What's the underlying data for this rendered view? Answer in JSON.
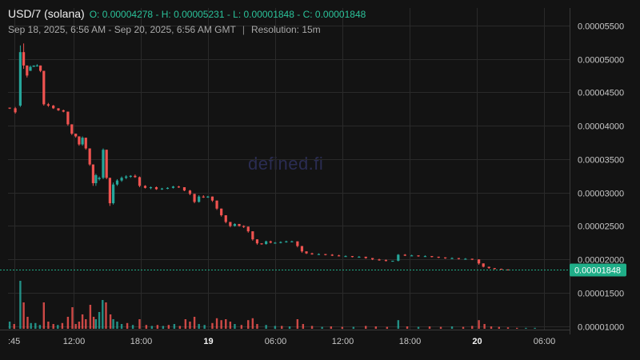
{
  "header": {
    "symbol": "USD/7 (solana)",
    "ohlc": "O: 0.00004278 - H: 0.00005231 - L: 0.00001848 - C: 0.00001848",
    "range": "Sep 18, 2025, 6:56 AM - Sep 20, 2025, 6:56 AM GMT",
    "separator": "|",
    "resolution": "Resolution: 15m"
  },
  "watermark": "defined.fi",
  "colors": {
    "up": "#26a69a",
    "down": "#ef5350",
    "last_price_badge": "#1fae88",
    "background": "#131313"
  },
  "chart_data": {
    "type": "candlestick",
    "y_tick_labels": [
      "0.00005500",
      "0.00005000",
      "0.00004500",
      "0.00004000",
      "0.00003500",
      "0.00003000",
      "0.00002500",
      "0.00002000",
      "0.00001500",
      "0.00001000"
    ],
    "y_ticks": [
      5.5e-05,
      5e-05,
      4.5e-05,
      4e-05,
      3.5e-05,
      3e-05,
      2.5e-05,
      2e-05,
      1.5e-05,
      1e-05
    ],
    "ylim": [
      9.5e-06,
      5.76e-05
    ],
    "x_tick_labels": [
      ":45",
      "12:00",
      "18:00",
      "19",
      "06:00",
      "12:00",
      "18:00",
      "20",
      "06:00"
    ],
    "x_ticks_hours": [
      -0.25,
      5,
      11,
      17,
      23,
      29,
      35,
      41,
      47
    ],
    "x_tick_bold": [
      false,
      false,
      false,
      true,
      false,
      false,
      false,
      true,
      false
    ],
    "xlim_hours": [
      -0.85,
      49.3
    ],
    "time_unit": "hours after 2025-09-18 06:56",
    "last_price": "0.00001848",
    "grid": true,
    "candles": [
      [
        -0.7,
        4.27,
        4.27,
        4.25,
        4.26
      ],
      [
        -0.2,
        4.26,
        4.28,
        4.18,
        4.2
      ],
      [
        0.25,
        4.3,
        5.2,
        4.28,
        5.1
      ],
      [
        0.55,
        5.1,
        5.23,
        4.85,
        4.9
      ],
      [
        0.85,
        4.9,
        4.9,
        4.72,
        4.75
      ],
      [
        1.15,
        4.82,
        4.9,
        4.82,
        4.88
      ],
      [
        1.45,
        4.88,
        4.9,
        4.88,
        4.9
      ],
      [
        1.75,
        4.9,
        4.92,
        4.89,
        4.9
      ],
      [
        2.05,
        4.9,
        4.9,
        4.8,
        4.82
      ],
      [
        2.35,
        4.82,
        4.82,
        4.3,
        4.32
      ],
      [
        2.75,
        4.32,
        4.34,
        4.28,
        4.3
      ],
      [
        3.2,
        4.3,
        4.31,
        4.25,
        4.26
      ],
      [
        3.65,
        4.26,
        4.26,
        4.22,
        4.23
      ],
      [
        4.1,
        4.23,
        4.24,
        4.2,
        4.21
      ],
      [
        4.5,
        4.21,
        4.21,
        4.0,
        4.02
      ],
      [
        4.85,
        4.02,
        4.02,
        3.86,
        3.88
      ],
      [
        5.2,
        3.88,
        3.88,
        3.82,
        3.84
      ],
      [
        5.5,
        3.84,
        3.84,
        3.7,
        3.72
      ],
      [
        5.8,
        3.72,
        3.84,
        3.7,
        3.82
      ],
      [
        6.1,
        3.82,
        3.82,
        3.64,
        3.66
      ],
      [
        6.45,
        3.66,
        3.66,
        3.4,
        3.42
      ],
      [
        6.75,
        3.42,
        3.42,
        3.1,
        3.14
      ],
      [
        7.0,
        3.14,
        3.28,
        3.1,
        3.26
      ],
      [
        7.3,
        3.2,
        3.24,
        3.18,
        3.22
      ],
      [
        7.65,
        3.22,
        3.66,
        3.2,
        3.64
      ],
      [
        7.95,
        3.64,
        3.64,
        3.2,
        3.22
      ],
      [
        8.25,
        3.22,
        3.22,
        2.8,
        2.84
      ],
      [
        8.55,
        2.84,
        3.15,
        2.82,
        3.12
      ],
      [
        8.9,
        3.12,
        3.2,
        3.1,
        3.18
      ],
      [
        9.3,
        3.18,
        3.24,
        3.16,
        3.22
      ],
      [
        9.7,
        3.22,
        3.26,
        3.2,
        3.24
      ],
      [
        10.1,
        3.24,
        3.26,
        3.22,
        3.25
      ],
      [
        10.5,
        3.25,
        3.27,
        3.22,
        3.23
      ],
      [
        10.9,
        3.23,
        3.24,
        3.08,
        3.1
      ],
      [
        11.4,
        3.1,
        3.11,
        3.06,
        3.07
      ],
      [
        11.9,
        3.07,
        3.09,
        3.05,
        3.08
      ],
      [
        12.4,
        3.08,
        3.09,
        3.04,
        3.05
      ],
      [
        12.9,
        3.05,
        3.07,
        3.04,
        3.06
      ],
      [
        13.4,
        3.06,
        3.08,
        3.05,
        3.07
      ],
      [
        13.9,
        3.07,
        3.1,
        3.06,
        3.09
      ],
      [
        14.4,
        3.09,
        3.1,
        3.07,
        3.08
      ],
      [
        14.9,
        3.08,
        3.08,
        3.02,
        3.03
      ],
      [
        15.4,
        3.03,
        3.04,
        2.96,
        2.98
      ],
      [
        15.8,
        2.98,
        2.98,
        2.84,
        2.86
      ],
      [
        16.2,
        2.86,
        2.96,
        2.85,
        2.94
      ],
      [
        16.6,
        2.94,
        2.96,
        2.92,
        2.93
      ],
      [
        17.0,
        2.93,
        2.95,
        2.92,
        2.94
      ],
      [
        17.4,
        2.94,
        2.94,
        2.86,
        2.88
      ],
      [
        17.8,
        2.88,
        2.88,
        2.74,
        2.76
      ],
      [
        18.2,
        2.76,
        2.76,
        2.64,
        2.66
      ],
      [
        18.6,
        2.66,
        2.66,
        2.54,
        2.56
      ],
      [
        19.0,
        2.56,
        2.56,
        2.48,
        2.5
      ],
      [
        19.4,
        2.5,
        2.54,
        2.49,
        2.53
      ],
      [
        19.8,
        2.53,
        2.53,
        2.49,
        2.5
      ],
      [
        20.2,
        2.5,
        2.51,
        2.47,
        2.49
      ],
      [
        20.6,
        2.49,
        2.49,
        2.4,
        2.42
      ],
      [
        21.0,
        2.42,
        2.42,
        2.28,
        2.3
      ],
      [
        21.4,
        2.3,
        2.3,
        2.22,
        2.24
      ],
      [
        21.8,
        2.24,
        2.24,
        2.22,
        2.23
      ],
      [
        22.2,
        2.23,
        2.28,
        2.22,
        2.27
      ],
      [
        22.6,
        2.27,
        2.28,
        2.24,
        2.25
      ],
      [
        23.0,
        2.25,
        2.26,
        2.24,
        2.25
      ],
      [
        23.5,
        2.25,
        2.27,
        2.24,
        2.26
      ],
      [
        24.0,
        2.26,
        2.28,
        2.25,
        2.27
      ],
      [
        24.5,
        2.27,
        2.28,
        2.26,
        2.27
      ],
      [
        25.0,
        2.27,
        2.27,
        2.18,
        2.2
      ],
      [
        25.4,
        2.2,
        2.2,
        2.1,
        2.12
      ],
      [
        25.8,
        2.12,
        2.12,
        2.08,
        2.09
      ],
      [
        26.3,
        2.09,
        2.1,
        2.07,
        2.08
      ],
      [
        26.9,
        2.08,
        2.09,
        2.07,
        2.08
      ],
      [
        27.5,
        2.08,
        2.08,
        2.06,
        2.07
      ],
      [
        28.1,
        2.07,
        2.08,
        2.05,
        2.06
      ],
      [
        28.7,
        2.06,
        2.07,
        2.05,
        2.05
      ],
      [
        29.3,
        2.05,
        2.06,
        2.04,
        2.05
      ],
      [
        29.9,
        2.05,
        2.05,
        2.03,
        2.04
      ],
      [
        30.5,
        2.04,
        2.05,
        2.03,
        2.04
      ],
      [
        31.1,
        2.04,
        2.04,
        2.01,
        2.02
      ],
      [
        31.7,
        2.02,
        2.02,
        1.99,
        2.0
      ],
      [
        32.3,
        2.0,
        2.01,
        1.98,
        1.99
      ],
      [
        32.9,
        1.99,
        2.0,
        1.97,
        1.98
      ],
      [
        33.5,
        1.98,
        1.98,
        1.97,
        1.98
      ],
      [
        34.0,
        1.98,
        2.08,
        1.97,
        2.07
      ],
      [
        34.6,
        2.07,
        2.08,
        2.05,
        2.06
      ],
      [
        35.2,
        2.06,
        2.07,
        2.05,
        2.06
      ],
      [
        35.8,
        2.06,
        2.06,
        2.04,
        2.05
      ],
      [
        36.4,
        2.05,
        2.06,
        2.04,
        2.05
      ],
      [
        37.0,
        2.05,
        2.05,
        2.03,
        2.04
      ],
      [
        37.6,
        2.04,
        2.04,
        2.02,
        2.03
      ],
      [
        38.2,
        2.03,
        2.03,
        2.01,
        2.02
      ],
      [
        38.8,
        2.02,
        2.03,
        2.01,
        2.02
      ],
      [
        39.4,
        2.02,
        2.02,
        2.0,
        2.01
      ],
      [
        40.0,
        2.01,
        2.02,
        2.0,
        2.01
      ],
      [
        40.6,
        2.01,
        2.01,
        1.99,
        2.0
      ],
      [
        41.2,
        2.0,
        2.0,
        1.92,
        1.94
      ],
      [
        41.6,
        1.94,
        1.94,
        1.88,
        1.89
      ],
      [
        42.1,
        1.89,
        1.89,
        1.86,
        1.87
      ],
      [
        42.6,
        1.87,
        1.87,
        1.85,
        1.86
      ],
      [
        43.2,
        1.86,
        1.86,
        1.85,
        1.85
      ],
      [
        43.8,
        1.85,
        1.85,
        1.848,
        1.848
      ]
    ],
    "volume": [
      [
        -0.7,
        0.15,
        "up"
      ],
      [
        -0.3,
        0.1,
        "down"
      ],
      [
        0.25,
        1.0,
        "up"
      ],
      [
        0.55,
        0.55,
        "down"
      ],
      [
        0.9,
        0.25,
        "down"
      ],
      [
        1.2,
        0.12,
        "up"
      ],
      [
        1.6,
        0.12,
        "up"
      ],
      [
        2.0,
        0.08,
        "up"
      ],
      [
        2.35,
        0.55,
        "down"
      ],
      [
        2.75,
        0.15,
        "down"
      ],
      [
        3.2,
        0.1,
        "down"
      ],
      [
        3.6,
        0.08,
        "up"
      ],
      [
        4.0,
        0.12,
        "down"
      ],
      [
        4.5,
        0.25,
        "down"
      ],
      [
        4.9,
        0.45,
        "down"
      ],
      [
        5.2,
        0.1,
        "down"
      ],
      [
        5.5,
        0.15,
        "down"
      ],
      [
        5.8,
        0.3,
        "down"
      ],
      [
        6.1,
        0.2,
        "down"
      ],
      [
        6.5,
        0.5,
        "down"
      ],
      [
        6.8,
        0.25,
        "down"
      ],
      [
        7.0,
        0.2,
        "up"
      ],
      [
        7.3,
        0.35,
        "up"
      ],
      [
        7.6,
        0.6,
        "up"
      ],
      [
        7.9,
        0.55,
        "down"
      ],
      [
        8.3,
        0.3,
        "down"
      ],
      [
        8.55,
        0.2,
        "up"
      ],
      [
        8.9,
        0.15,
        "up"
      ],
      [
        9.3,
        0.1,
        "up"
      ],
      [
        9.8,
        0.12,
        "down"
      ],
      [
        10.3,
        0.08,
        "up"
      ],
      [
        10.9,
        0.2,
        "down"
      ],
      [
        11.5,
        0.08,
        "down"
      ],
      [
        12.0,
        0.06,
        "up"
      ],
      [
        12.5,
        0.08,
        "down"
      ],
      [
        13.0,
        0.06,
        "up"
      ],
      [
        13.5,
        0.08,
        "down"
      ],
      [
        14.0,
        0.1,
        "up"
      ],
      [
        14.5,
        0.06,
        "down"
      ],
      [
        15.0,
        0.2,
        "down"
      ],
      [
        15.4,
        0.15,
        "down"
      ],
      [
        15.8,
        0.25,
        "down"
      ],
      [
        16.2,
        0.1,
        "up"
      ],
      [
        16.7,
        0.08,
        "up"
      ],
      [
        17.4,
        0.12,
        "down"
      ],
      [
        17.8,
        0.22,
        "down"
      ],
      [
        18.2,
        0.18,
        "down"
      ],
      [
        18.6,
        0.2,
        "down"
      ],
      [
        19.0,
        0.15,
        "down"
      ],
      [
        19.4,
        0.1,
        "up"
      ],
      [
        20.0,
        0.08,
        "down"
      ],
      [
        20.6,
        0.18,
        "down"
      ],
      [
        21.0,
        0.22,
        "down"
      ],
      [
        21.4,
        0.1,
        "down"
      ],
      [
        22.2,
        0.08,
        "up"
      ],
      [
        23.0,
        0.06,
        "up"
      ],
      [
        23.6,
        0.06,
        "down"
      ],
      [
        24.3,
        0.05,
        "up"
      ],
      [
        25.0,
        0.2,
        "down"
      ],
      [
        25.5,
        0.1,
        "down"
      ],
      [
        26.3,
        0.06,
        "down"
      ],
      [
        27.2,
        0.04,
        "up"
      ],
      [
        28.0,
        0.05,
        "down"
      ],
      [
        29.0,
        0.04,
        "down"
      ],
      [
        30.0,
        0.04,
        "up"
      ],
      [
        31.1,
        0.06,
        "down"
      ],
      [
        32.0,
        0.05,
        "down"
      ],
      [
        33.0,
        0.04,
        "down"
      ],
      [
        34.0,
        0.18,
        "up"
      ],
      [
        34.8,
        0.05,
        "down"
      ],
      [
        35.8,
        0.04,
        "up"
      ],
      [
        36.8,
        0.05,
        "down"
      ],
      [
        37.8,
        0.04,
        "down"
      ],
      [
        38.8,
        0.05,
        "up"
      ],
      [
        39.8,
        0.04,
        "down"
      ],
      [
        40.6,
        0.06,
        "down"
      ],
      [
        41.2,
        0.18,
        "down"
      ],
      [
        41.7,
        0.1,
        "down"
      ],
      [
        42.3,
        0.05,
        "down"
      ],
      [
        43.0,
        0.04,
        "down"
      ],
      [
        43.8,
        0.03,
        "down"
      ],
      [
        44.6,
        0.02,
        "down"
      ],
      [
        45.4,
        0.02,
        "up"
      ],
      [
        46.2,
        0.02,
        "up"
      ]
    ]
  }
}
